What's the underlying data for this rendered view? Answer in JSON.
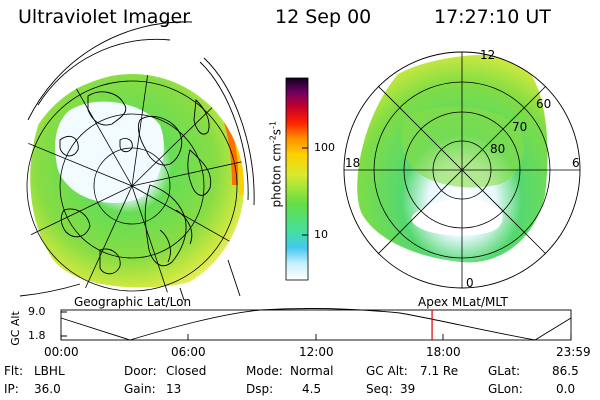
{
  "header": {
    "instrument": "Ultraviolet Imager",
    "date": "12 Sep 00",
    "time": "17:27:10 UT"
  },
  "colorbar": {
    "unit_label": "photon cm",
    "unit_exp1": "-2",
    "unit_mid": "s",
    "unit_exp2": "-1",
    "tick_100": "100",
    "tick_10": "10"
  },
  "left_panel": {
    "caption": "Geographic Lat/Lon"
  },
  "right_panel": {
    "caption": "Apex MLat/MLT",
    "mlt_12": "12",
    "mlt_18": "18",
    "mlt_6": "6",
    "mlt_0": "0",
    "lat_60": "60",
    "lat_70": "70",
    "lat_80": "80"
  },
  "timeline": {
    "ylabel": "GC Alt",
    "y_top": "9.0",
    "y_bottom": "1.8",
    "x_ticks": [
      "00:00",
      "06:00",
      "12:00",
      "18:00",
      "23:59"
    ],
    "marker_time": "17:27"
  },
  "info": {
    "flt_label": "Flt:",
    "flt_value": "LBHL",
    "ip_label": "IP:",
    "ip_value": "36.0",
    "door_label": "Door:",
    "door_value": "Closed",
    "gain_label": "Gain:",
    "gain_value": "13",
    "mode_label": "Mode:",
    "mode_value": "Normal",
    "dsp_label": "Dsp:",
    "dsp_value": "4.5",
    "gcalt_label": "GC Alt:",
    "gcalt_value": "7.1 Re",
    "seq_label": "Seq:",
    "seq_value": "39",
    "glat_label": "GLat:",
    "glat_value": "86.5",
    "glon_label": "GLon:",
    "glon_value": "0.0"
  },
  "colors": {
    "accent_marker": "#e00000",
    "low": "#e6f5ff",
    "mid": "#66dd44",
    "high": "#ffaa00",
    "peak": "#cc0000"
  }
}
